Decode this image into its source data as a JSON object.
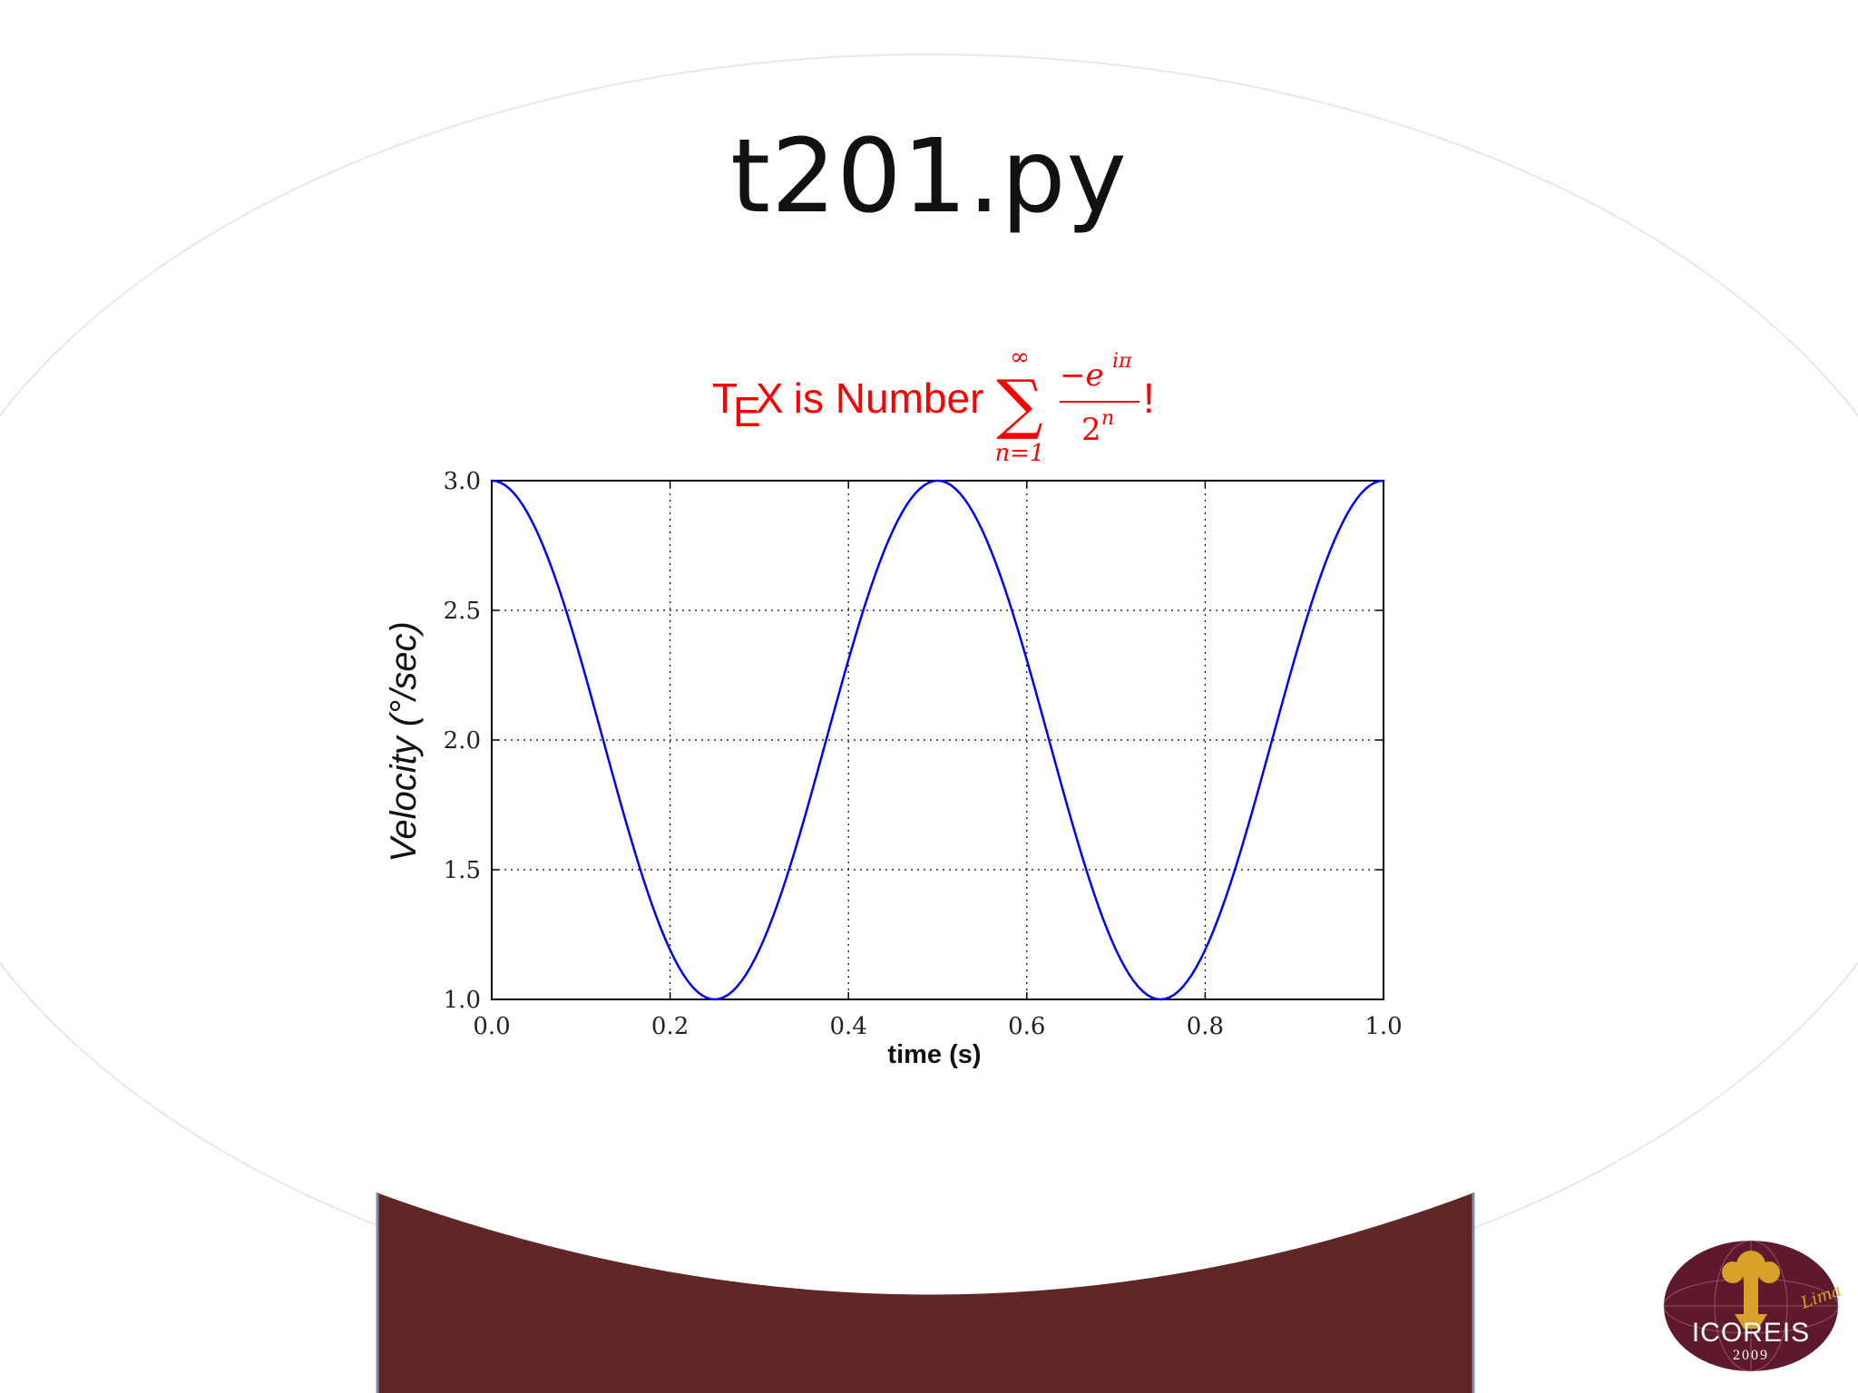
{
  "slide": {
    "title": "t201.py"
  },
  "chart_data": {
    "type": "line",
    "title_parts": {
      "prefix_T": "T",
      "prefix_E": "E",
      "prefix_X": "X",
      "text": " is Number ",
      "sum_upper": "∞",
      "sum_symbol": "∑",
      "sum_lower": "n=1",
      "numerator": "−e",
      "numerator_exp": "iπ",
      "denominator": "2",
      "denominator_exp": "n",
      "suffix": "!"
    },
    "xlabel": "time (s)",
    "ylabel": "Velocity (°/sec)",
    "xlim": [
      0.0,
      1.0
    ],
    "ylim": [
      1.0,
      3.0
    ],
    "x_ticks": [
      "0.0",
      "0.2",
      "0.4",
      "0.6",
      "0.8",
      "1.0"
    ],
    "y_ticks": [
      "1.0",
      "1.5",
      "2.0",
      "2.5",
      "3.0"
    ],
    "grid": true,
    "series": [
      {
        "function": "cos(4*pi*t) + 2",
        "color": "#0000ff",
        "x": [
          0.0,
          0.05,
          0.1,
          0.15,
          0.2,
          0.25,
          0.3,
          0.35,
          0.4,
          0.45,
          0.5,
          0.55,
          0.6,
          0.65,
          0.7,
          0.75,
          0.8,
          0.85,
          0.9,
          0.95,
          1.0
        ],
        "y": [
          3.0,
          2.81,
          2.31,
          1.69,
          1.19,
          1.0,
          1.19,
          1.69,
          2.31,
          2.81,
          3.0,
          2.81,
          2.31,
          1.69,
          1.19,
          1.0,
          1.19,
          1.69,
          2.31,
          2.81,
          3.0
        ]
      }
    ],
    "title_color": "#ff0000"
  },
  "logo": {
    "main_text": "ICOREIS",
    "year": "2009",
    "script_text": "Lima"
  },
  "colors": {
    "band": "#612626",
    "ellipse_edge": "#e6e6e6"
  }
}
